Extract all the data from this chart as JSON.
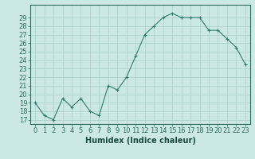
{
  "x": [
    0,
    1,
    2,
    3,
    4,
    5,
    6,
    7,
    8,
    9,
    10,
    11,
    12,
    13,
    14,
    15,
    16,
    17,
    18,
    19,
    20,
    21,
    22,
    23
  ],
  "y": [
    19,
    17.5,
    17,
    19.5,
    18.5,
    19.5,
    18,
    17.5,
    21,
    20.5,
    22,
    24.5,
    27,
    28,
    29,
    29.5,
    29,
    29,
    29,
    27.5,
    27.5,
    26.5,
    25.5,
    23.5
  ],
  "line_color": "#2e7d6e",
  "marker": "+",
  "bg_color": "#cce8e4",
  "grid_color": "#aacfcb",
  "xlabel": "Humidex (Indice chaleur)",
  "xlim": [
    -0.5,
    23.5
  ],
  "ylim": [
    16.5,
    30.5
  ],
  "yticks": [
    17,
    18,
    19,
    20,
    21,
    22,
    23,
    24,
    25,
    26,
    27,
    28,
    29
  ],
  "xticks": [
    0,
    1,
    2,
    3,
    4,
    5,
    6,
    7,
    8,
    9,
    10,
    11,
    12,
    13,
    14,
    15,
    16,
    17,
    18,
    19,
    20,
    21,
    22,
    23
  ],
  "tick_color": "#2e6b5e",
  "text_color": "#1a4a40",
  "font_size": 6,
  "label_font_size": 7
}
